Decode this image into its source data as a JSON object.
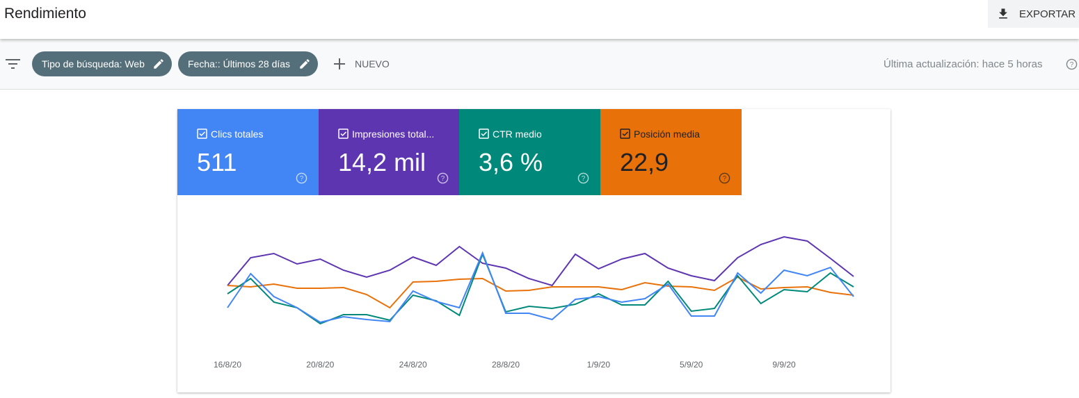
{
  "header": {
    "title": "Rendimiento",
    "export": "EXPORTAR"
  },
  "filters": {
    "chips": [
      "Tipo de búsqueda: Web",
      "Fecha:: Últimos 28 días"
    ],
    "new": "NUEVO",
    "updated": "Última actualización: hace 5 horas"
  },
  "cards": [
    {
      "label": "Clics totales",
      "value": "511"
    },
    {
      "label": "Impresiones total...",
      "value": "14,2 mil"
    },
    {
      "label": "CTR medio",
      "value": "3,6 %"
    },
    {
      "label": "Posición media",
      "value": "22,9"
    }
  ],
  "chart_data": {
    "type": "line",
    "categories": [
      "16/8/20",
      null,
      null,
      null,
      "20/8/20",
      null,
      null,
      null,
      "24/8/20",
      null,
      null,
      null,
      "28/8/20",
      null,
      null,
      null,
      "1/9/20",
      null,
      null,
      null,
      "5/9/20",
      null,
      null,
      null,
      "9/9/20",
      null,
      null,
      null
    ],
    "ylim": [
      0,
      100
    ],
    "series": [
      {
        "name": "Impresiones total...",
        "color": "#5e35b1",
        "values": [
          44.5,
          64.5,
          67.5,
          60,
          63.5,
          55.5,
          50.5,
          55.5,
          65,
          59,
          72.5,
          60.5,
          57,
          49.5,
          44.5,
          67,
          56.5,
          63.5,
          67.5,
          57,
          51.5,
          48,
          64.5,
          74,
          79.5,
          76.5,
          64,
          51
        ]
      },
      {
        "name": "Posición media",
        "color": "#e8710a",
        "values": [
          44.5,
          43.5,
          45.5,
          42.5,
          42.5,
          43,
          38,
          28.5,
          47,
          47.5,
          49,
          49.5,
          40.5,
          41,
          43.5,
          43.5,
          43.5,
          41.5,
          46.5,
          44,
          43.5,
          41,
          50.5,
          42,
          43,
          43.5,
          39.5,
          37.5
        ]
      },
      {
        "name": "CTR medio",
        "color": "#00897b",
        "values": [
          38.5,
          49.5,
          32.5,
          28.5,
          17,
          23.5,
          23.5,
          19.5,
          37.5,
          33.5,
          23,
          67,
          25.5,
          29.5,
          28,
          31,
          38.5,
          30.5,
          30.5,
          47.5,
          26,
          28,
          51.5,
          31.5,
          41.5,
          40,
          53.5,
          43.5
        ]
      },
      {
        "name": "Clics totales",
        "color": "#4285f4",
        "values": [
          28.5,
          53,
          36.5,
          28.5,
          18,
          22,
          20,
          18.5,
          40.5,
          33,
          28.5,
          68,
          24.5,
          24.5,
          20,
          34.5,
          36.5,
          32.5,
          35,
          45.5,
          22.5,
          22.5,
          53.5,
          39,
          55.5,
          51.5,
          57.5,
          36.5
        ]
      }
    ]
  }
}
